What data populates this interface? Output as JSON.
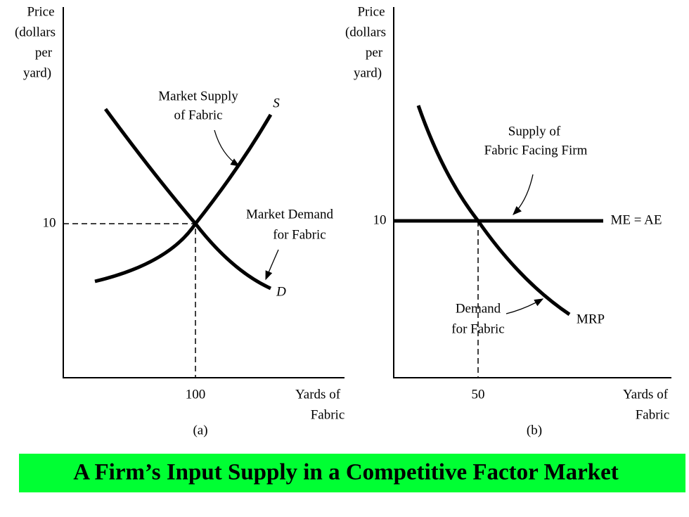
{
  "panels": [
    {
      "y_axis_label": [
        "Price",
        "(dollars",
        "per",
        "yard)"
      ],
      "y_tick": "10",
      "x_tick": "100",
      "x_axis_label": [
        "Yards of",
        "Fabric"
      ],
      "caption": "(a)",
      "supply_label": [
        "Market Supply",
        "of Fabric"
      ],
      "supply_curve_label": "S",
      "demand_label": [
        "Market Demand",
        "for Fabric"
      ],
      "demand_curve_label": "D"
    },
    {
      "y_axis_label": [
        "Price",
        "(dollars",
        "per",
        "yard)"
      ],
      "y_tick": "10",
      "x_tick": "50",
      "x_axis_label": [
        "Yards of",
        "Fabric"
      ],
      "caption": "(b)",
      "supply_label": [
        "Supply of",
        "Fabric Facing Firm"
      ],
      "supply_curve_label": "ME = AE",
      "demand_label": [
        "Demand",
        "for Fabric"
      ],
      "demand_curve_label": "MRP"
    }
  ],
  "title": "A Firm’s Input Supply in a Competitive Factor Market"
}
